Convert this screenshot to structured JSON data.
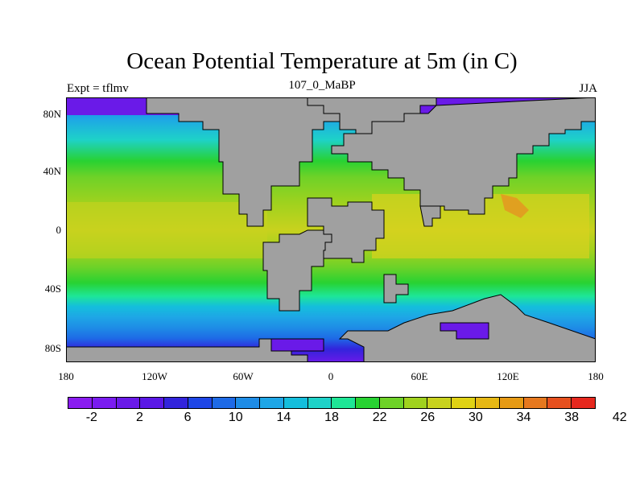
{
  "title": "Ocean Potential Temperature at 5m (in C)",
  "subtitle": "107_0_MaBP",
  "left_label": "Expt = tflmv",
  "right_label": "JJA",
  "lat_labels": [
    "80N",
    "40N",
    "0",
    "40S",
    "80S"
  ],
  "lon_labels": [
    "180",
    "120W",
    "60W",
    "0",
    "60E",
    "120E",
    "180"
  ],
  "colorbar": {
    "colors": [
      "#8a1cf0",
      "#7a1cf0",
      "#6a1ae8",
      "#5a18e6",
      "#3224dc",
      "#1e46e6",
      "#1e6ae6",
      "#1e8ce6",
      "#1ea6e6",
      "#14bedc",
      "#1ed2c8",
      "#1ee696",
      "#28d232",
      "#6ed228",
      "#a0d21e",
      "#c8d21e",
      "#e0d214",
      "#e6b814",
      "#e69a14",
      "#e6781e",
      "#e6501e",
      "#e6281e"
    ],
    "tick_labels": [
      "-2",
      "2",
      "6",
      "10",
      "14",
      "18",
      "22",
      "26",
      "30",
      "34",
      "38",
      "42"
    ]
  },
  "land_color": "#a0a0a0"
}
